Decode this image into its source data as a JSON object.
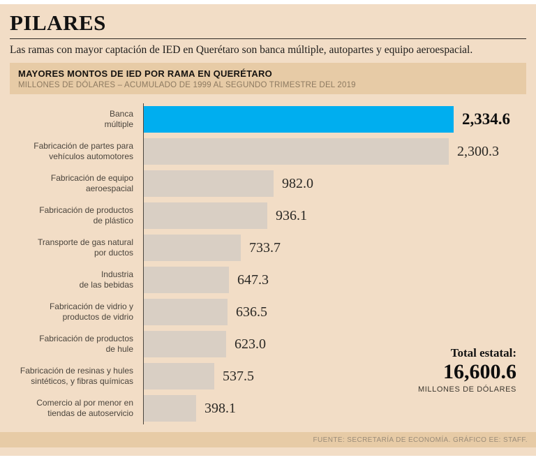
{
  "page": {
    "title": "PILARES",
    "subtitle": "Las ramas con mayor captación de IED en Querétaro son banca múltiple, autopartes y equipo aeroespacial.",
    "footer": "FUENTE: SECRETARÍA DE ECONOMÍA. GRÁFICO EE: STAFF."
  },
  "header_band": {
    "title": "MAYORES MONTOS DE IED POR RAMA EN QUERÉTARO",
    "subtitle": "MILLONES DE DÓLARES – ACUMULADO DE 1999 AL SEGUNDO TRIMESTRE DEL 2019"
  },
  "total": {
    "label": "Total estatal:",
    "value_label": "16,600.6",
    "unit": "MILLONES DE DÓLARES"
  },
  "colors": {
    "background": "#f2ddc6",
    "band": "#e7cba6",
    "bar": "#d9cfc4",
    "highlight": "#00aeef"
  },
  "chart_data": {
    "type": "bar",
    "orientation": "horizontal",
    "title": "MAYORES MONTOS DE IED POR RAMA EN QUERÉTARO",
    "subtitle": "MILLONES DE DÓLARES – ACUMULADO DE 1999 AL SEGUNDO TRIMESTRE DEL 2019",
    "unit": "millones de dólares",
    "xlim": [
      0,
      2334.6
    ],
    "legend": "none",
    "grid": false,
    "rows": [
      {
        "label_lines": [
          "Banca",
          "múltiple"
        ],
        "value": 2334.6,
        "value_label": "2,334.6",
        "highlight": true
      },
      {
        "label_lines": [
          "Fabricación de partes para",
          "vehículos automotores"
        ],
        "value": 2300.3,
        "value_label": "2,300.3"
      },
      {
        "label_lines": [
          "Fabricación de equipo",
          "aeroespacial"
        ],
        "value": 982.0,
        "value_label": "982.0"
      },
      {
        "label_lines": [
          "Fabricación de productos",
          "de plástico"
        ],
        "value": 936.1,
        "value_label": "936.1"
      },
      {
        "label_lines": [
          "Transporte de gas natural",
          "por ductos"
        ],
        "value": 733.7,
        "value_label": "733.7"
      },
      {
        "label_lines": [
          "Industria",
          "de las bebidas"
        ],
        "value": 647.3,
        "value_label": "647.3"
      },
      {
        "label_lines": [
          "Fabricación de vidrio y",
          "productos de vidrio"
        ],
        "value": 636.5,
        "value_label": "636.5"
      },
      {
        "label_lines": [
          "Fabricación de productos",
          "de hule"
        ],
        "value": 623.0,
        "value_label": "623.0"
      },
      {
        "label_lines": [
          "Fabricación de resinas y hules",
          "sintéticos, y fibras químicas"
        ],
        "value": 537.5,
        "value_label": "537.5"
      },
      {
        "label_lines": [
          "Comercio al por menor en",
          "tiendas de autoservicio"
        ],
        "value": 398.1,
        "value_label": "398.1"
      }
    ],
    "total": {
      "label": "Total estatal:",
      "value": 16600.6,
      "unit": "millones de dólares"
    }
  }
}
